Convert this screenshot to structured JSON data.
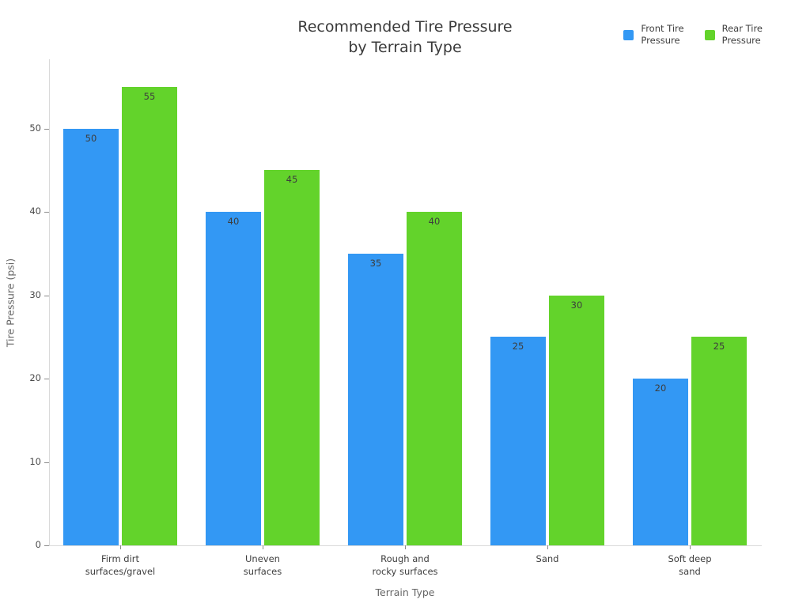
{
  "chart_data": {
    "type": "bar",
    "title": "Recommended Tire Pressure by Terrain Type",
    "title_lines": [
      "Recommended Tire Pressure",
      "by Terrain Type"
    ],
    "xlabel": "Terrain Type",
    "ylabel": "Tire Pressure (psi)",
    "categories": [
      "Firm dirt surfaces/gravel",
      "Uneven surfaces",
      "Rough and rocky surfaces",
      "Sand",
      "Soft deep sand"
    ],
    "category_label_lines": [
      [
        "Firm dirt",
        "surfaces/gravel"
      ],
      [
        "Uneven",
        "surfaces"
      ],
      [
        "Rough and",
        "rocky surfaces"
      ],
      [
        "Sand"
      ],
      [
        "Soft deep",
        "sand"
      ]
    ],
    "series": [
      {
        "name": "Front Tire Pressure",
        "legend_lines": [
          "Front Tire",
          "Pressure"
        ],
        "color": "#3398f4",
        "values": [
          50,
          40,
          35,
          25,
          20
        ]
      },
      {
        "name": "Rear Tire Pressure",
        "legend_lines": [
          "Rear Tire",
          "Pressure"
        ],
        "color": "#63d32b",
        "values": [
          55,
          45,
          40,
          30,
          25
        ]
      }
    ],
    "yticks": [
      0,
      10,
      20,
      30,
      40,
      50
    ],
    "ylim": [
      0,
      58.3
    ],
    "grid": false,
    "legend_position": "top-right",
    "bar_value_labels": true
  }
}
